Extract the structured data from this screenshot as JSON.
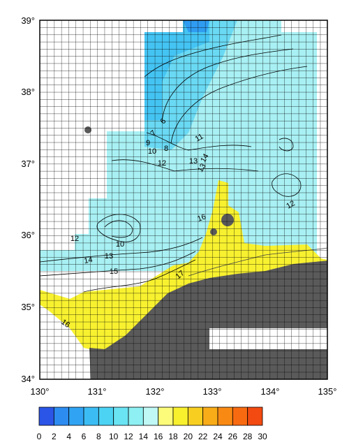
{
  "map": {
    "lon_ticks": [
      "130°",
      "131°",
      "132°",
      "133°",
      "134°",
      "135°"
    ],
    "lat_ticks": [
      "34°",
      "35°",
      "36°",
      "37°",
      "38°",
      "39°"
    ],
    "contour_labels": [
      "6",
      "7",
      "8",
      "9",
      "10",
      "11",
      "12",
      "13",
      "14",
      "13",
      "12",
      "16",
      "10",
      "12",
      "13",
      "14",
      "15",
      "17",
      "16"
    ]
  },
  "colorbar": {
    "ticks": [
      "0",
      "2",
      "4",
      "6",
      "8",
      "10",
      "12",
      "14",
      "16",
      "18",
      "20",
      "22",
      "24",
      "26",
      "28",
      "30"
    ],
    "colors": [
      "#2b55e6",
      "#2d8cf0",
      "#30a4f2",
      "#3bbdf3",
      "#4cd3f3",
      "#6ae3f3",
      "#8ef0f2",
      "#bff8f4",
      "#fdfc7a",
      "#f8f02c",
      "#f8cf20",
      "#f8ac18",
      "#f88a14",
      "#f86a10",
      "#f24a10"
    ]
  }
}
